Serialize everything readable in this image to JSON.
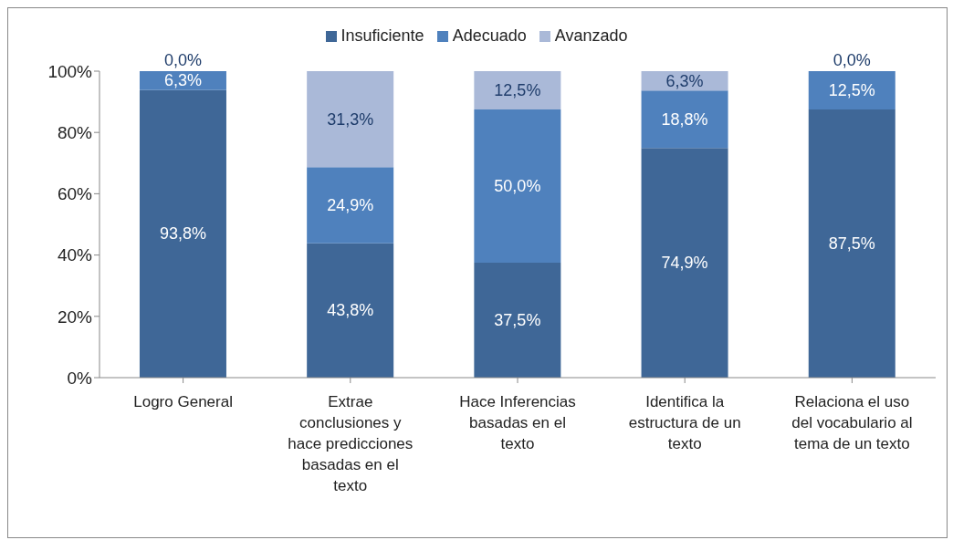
{
  "chart_data": {
    "type": "bar",
    "stacked": true,
    "categories": [
      "Logro General",
      "Extrae conclusiones y hace predicciones basadas en el texto",
      "Hace Inferencias basadas en el texto",
      "Identifica la estructura de un texto",
      "Relaciona el uso del vocabulario al tema de un texto"
    ],
    "series": [
      {
        "name": "Insuficiente",
        "color": "#3f6797",
        "values": [
          93.8,
          43.8,
          37.5,
          74.9,
          87.5
        ],
        "value_labels": [
          "93,8%",
          "43,8%",
          "37,5%",
          "74,9%",
          "87,5%"
        ]
      },
      {
        "name": "Adecuado",
        "color": "#4f81bd",
        "values": [
          6.3,
          24.9,
          50.0,
          18.8,
          12.5
        ],
        "value_labels": [
          "6,3%",
          "24,9%",
          "50,0%",
          "18,8%",
          "12,5%"
        ]
      },
      {
        "name": "Avanzado",
        "color": "#aab9d8",
        "values": [
          0.0,
          31.3,
          12.5,
          6.3,
          0.0
        ],
        "value_labels": [
          "0,0%",
          "31,3%",
          "12,5%",
          "6,3%",
          "0,0%"
        ]
      }
    ],
    "ylim": [
      0,
      100
    ],
    "yticks": [
      {
        "value": 0,
        "label": "0%"
      },
      {
        "value": 20,
        "label": "20%"
      },
      {
        "value": 40,
        "label": "40%"
      },
      {
        "value": 60,
        "label": "60%"
      },
      {
        "value": 80,
        "label": "80%"
      },
      {
        "value": 100,
        "label": "100%"
      }
    ],
    "grid": false,
    "legend": "top"
  }
}
